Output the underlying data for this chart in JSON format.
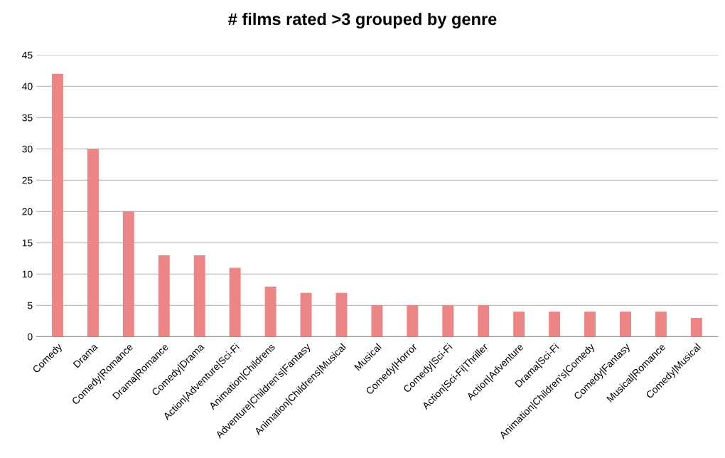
{
  "chart_data": {
    "type": "bar",
    "title": "# films rated >3 grouped by genre",
    "categories": [
      "Comedy",
      "Drama",
      "Comedy|Romance",
      "Drama|Romance",
      "Comedy|Drama",
      "Action|Adventure|Sci-Fi",
      "Animation|Childrens",
      "Adventure|Children's|Fantasy",
      "Animation|Childrens|Musical",
      "Musical",
      "Comedy|Horror",
      "Comedy|Sci-Fi",
      "Action|Sci-Fi|Thriller",
      "Action|Adventure",
      "Drama|Sci-Fi",
      "Animation|Children's|Comedy",
      "Comedy|Fantasy",
      "Musical|Romance",
      "Comedy|Musical"
    ],
    "values": [
      42,
      30,
      20,
      13,
      13,
      11,
      8,
      7,
      7,
      5,
      5,
      5,
      5,
      4,
      4,
      4,
      4,
      4,
      3
    ],
    "color": "#ec8585",
    "ylim": [
      0,
      45
    ],
    "yticks": [
      0,
      5,
      10,
      15,
      20,
      25,
      30,
      35,
      40,
      45
    ],
    "grid": "y"
  }
}
